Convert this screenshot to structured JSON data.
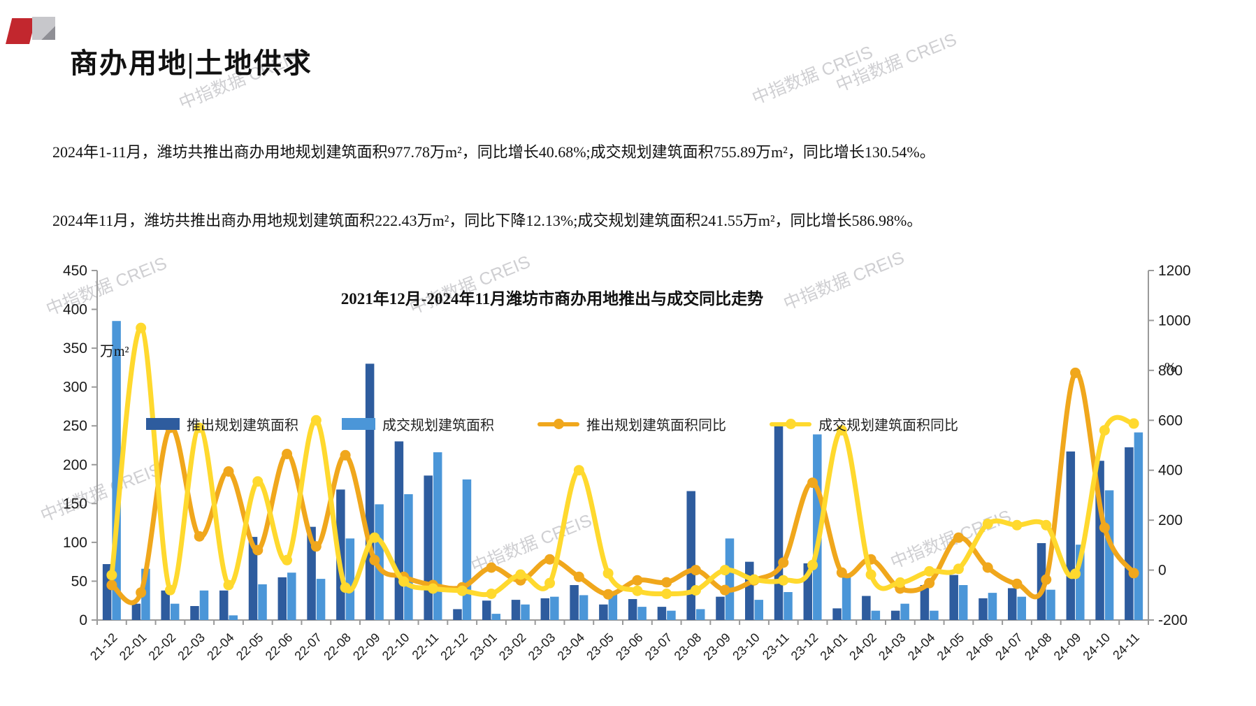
{
  "header": {
    "title": "商办用地|土地供求"
  },
  "paragraphs": {
    "p1": "2024年1-11月，潍坊共推出商办用地规划建筑面积977.78万m²，同比增长40.68%;成交规划建筑面积755.89万m²，同比增长130.54%。",
    "p2": "2024年11月，潍坊共推出商办用地规划建筑面积222.43万m²，同比下降12.13%;成交规划建筑面积241.55万m²，同比增长586.98%。"
  },
  "watermark": "中指数据 CREIS",
  "chart_data": {
    "type": "bar+line combo",
    "title": "2021年12月-2024年11月潍坊市商办用地推出与成交同比走势",
    "left_axis": {
      "unit": "万m²",
      "min": 0,
      "max": 450,
      "step": 50
    },
    "right_axis": {
      "unit": "%",
      "min": -200,
      "max": 1200,
      "step": 200
    },
    "legend_position": "top",
    "grid": false,
    "categories": [
      "21-12",
      "22-01",
      "22-02",
      "22-03",
      "22-04",
      "22-05",
      "22-06",
      "22-07",
      "22-08",
      "22-09",
      "22-10",
      "22-11",
      "22-12",
      "23-01",
      "23-02",
      "23-03",
      "23-04",
      "23-05",
      "23-06",
      "23-07",
      "23-08",
      "23-09",
      "23-10",
      "23-11",
      "23-12",
      "24-01",
      "24-02",
      "24-03",
      "24-04",
      "24-05",
      "24-06",
      "24-07",
      "24-08",
      "24-09",
      "24-10",
      "24-11"
    ],
    "series": [
      {
        "name": "推出规划建筑面积",
        "type": "bar",
        "axis": "left",
        "color": "#2e5c9e",
        "values": [
          72,
          21,
          38,
          18,
          38,
          107,
          55,
          120,
          168,
          330,
          230,
          186,
          14,
          25,
          26,
          28,
          45,
          20,
          27,
          17,
          166,
          30,
          75,
          253,
          73,
          15,
          31,
          12,
          45,
          58,
          28,
          41,
          99,
          217,
          205,
          222.43
        ]
      },
      {
        "name": "成交规划建筑面积",
        "type": "bar",
        "axis": "left",
        "color": "#4b96d8",
        "values": [
          385,
          66,
          21,
          38,
          6,
          46,
          61,
          53,
          105,
          149,
          162,
          216,
          181,
          8,
          20,
          30,
          32,
          37,
          17,
          12,
          14,
          105,
          26,
          36,
          239,
          57,
          12,
          21,
          12,
          45,
          35,
          30,
          39,
          97,
          167,
          241.55
        ]
      },
      {
        "name": "推出规划建筑面积同比",
        "type": "line",
        "axis": "right",
        "color": "#f0a71c",
        "values": [
          -60,
          -90,
          570,
          135,
          395,
          80,
          465,
          95,
          460,
          40,
          -27,
          -60,
          -69,
          10,
          -41,
          43,
          -27,
          -97,
          -41,
          -49,
          0,
          -80,
          -41,
          30,
          350,
          -10,
          43,
          -74,
          -52,
          130,
          10,
          -55,
          -38,
          790,
          170,
          -12.13
        ]
      },
      {
        "name": "成交规划建筑面积同比",
        "type": "line",
        "axis": "right",
        "color": "#ffd92e",
        "values": [
          -20,
          970,
          -80,
          570,
          -60,
          355,
          40,
          600,
          -70,
          130,
          -46,
          -74,
          -83,
          -95,
          -18,
          -52,
          400,
          -13,
          -83,
          -95,
          -81,
          0,
          -38,
          -41,
          20,
          560,
          -18,
          -50,
          -5,
          5,
          185,
          180,
          180,
          -15,
          560,
          586.98
        ]
      }
    ]
  }
}
